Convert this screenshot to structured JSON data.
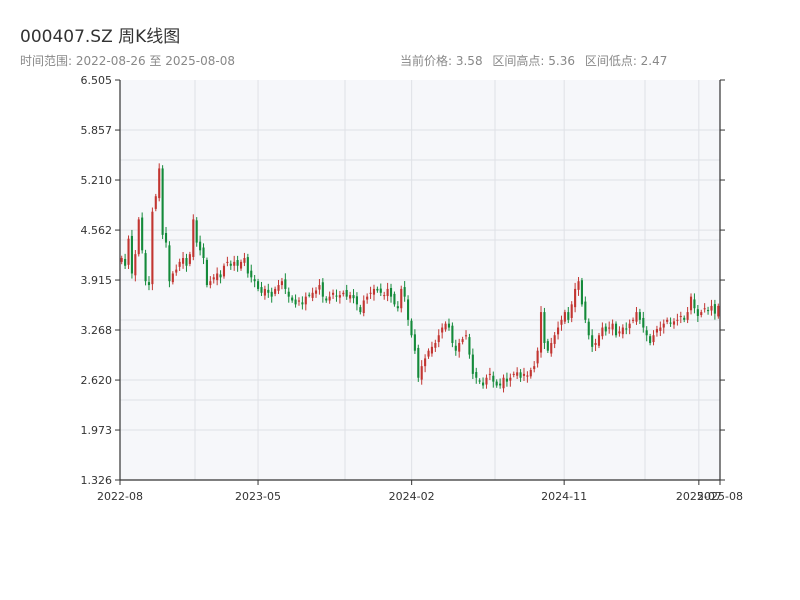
{
  "title": "000407.SZ 周K线图",
  "subtitle_left": "时间范围: 2022-08-26 至 2025-08-08",
  "stats": {
    "current": "当前价格: 3.58",
    "high": "区间高点: 5.36",
    "low": "区间低点: 2.47"
  },
  "colors": {
    "up": "#c23531",
    "down": "#148a3a",
    "plot_bg": "#f6f7fa",
    "grid": "#dfe1e6",
    "axis": "#333333"
  },
  "chart_data": {
    "type": "candlestick",
    "title": "000407.SZ 周K线图",
    "ylim": [
      1.326,
      6.505
    ],
    "yticks": [
      "6.505",
      "5.857",
      "5.210",
      "4.562",
      "3.915",
      "3.268",
      "2.620",
      "1.973",
      "1.326"
    ],
    "xticks": [
      {
        "label": "2022-08",
        "date": "2022-08-26"
      },
      {
        "label": "2023-05",
        "date": "2023-05-01"
      },
      {
        "label": "2024-02",
        "date": "2024-02-01"
      },
      {
        "label": "2024-11",
        "date": "2024-11-01"
      },
      {
        "label": "2025-07",
        "date": "2025-07-01"
      },
      {
        "label": "2025-08",
        "date": "2025-08-08"
      }
    ],
    "xlim": [
      "2022-08-26",
      "2025-08-08"
    ],
    "grid": true,
    "closes": [
      4.2,
      4.1,
      4.45,
      4.0,
      4.25,
      4.7,
      4.3,
      3.9,
      3.85,
      4.8,
      5.0,
      5.36,
      4.5,
      4.4,
      3.9,
      4.0,
      4.05,
      4.15,
      4.2,
      4.1,
      4.25,
      4.7,
      4.4,
      4.3,
      4.2,
      3.85,
      3.9,
      3.95,
      4.0,
      3.95,
      4.1,
      4.15,
      4.1,
      4.15,
      4.1,
      4.15,
      4.2,
      4.0,
      3.95,
      3.9,
      3.8,
      3.75,
      3.8,
      3.75,
      3.7,
      3.8,
      3.85,
      3.9,
      3.8,
      3.7,
      3.65,
      3.6,
      3.65,
      3.6,
      3.7,
      3.72,
      3.75,
      3.78,
      3.85,
      3.7,
      3.65,
      3.7,
      3.75,
      3.7,
      3.72,
      3.75,
      3.7,
      3.72,
      3.68,
      3.6,
      3.5,
      3.65,
      3.7,
      3.75,
      3.8,
      3.78,
      3.75,
      3.72,
      3.8,
      3.7,
      3.6,
      3.55,
      3.8,
      3.7,
      3.4,
      3.2,
      3.0,
      2.65,
      2.8,
      2.9,
      3.0,
      3.05,
      3.1,
      3.2,
      3.3,
      3.35,
      3.3,
      3.1,
      3.0,
      3.1,
      3.15,
      3.2,
      2.95,
      2.7,
      2.65,
      2.6,
      2.55,
      2.65,
      2.7,
      2.6,
      2.55,
      2.55,
      2.65,
      2.6,
      2.65,
      2.7,
      2.72,
      2.65,
      2.7,
      2.68,
      2.75,
      2.8,
      3.0,
      3.5,
      3.1,
      3.0,
      3.1,
      3.2,
      3.3,
      3.4,
      3.5,
      3.4,
      3.6,
      3.8,
      3.9,
      3.6,
      3.4,
      3.2,
      3.05,
      3.1,
      3.2,
      3.3,
      3.25,
      3.3,
      3.35,
      3.2,
      3.25,
      3.3,
      3.28,
      3.35,
      3.4,
      3.5,
      3.4,
      3.3,
      3.2,
      3.1,
      3.2,
      3.28,
      3.3,
      3.35,
      3.4,
      3.35,
      3.38,
      3.4,
      3.45,
      3.4,
      3.5,
      3.7,
      3.55,
      3.45,
      3.5,
      3.55,
      3.52,
      3.58,
      3.48,
      3.58
    ]
  }
}
